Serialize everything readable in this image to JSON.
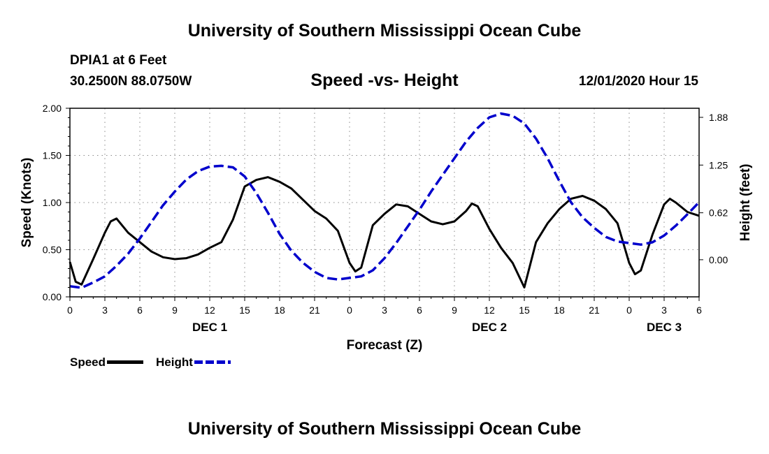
{
  "header": {
    "title_top": "University of Southern Mississippi Ocean Cube",
    "station": "DPIA1 at 6 Feet",
    "coords": "30.2500N 88.0750W",
    "timestamp": "12/01/2020 Hour 15",
    "title_bottom": "University of Southern Mississippi Ocean Cube"
  },
  "chart_data": {
    "type": "line",
    "title": "Speed -vs- Height",
    "xlabel": "Forecast (Z)",
    "ylabel_left": "Speed (Knots)",
    "ylabel_right": "Height (feet)",
    "x_ticks": [
      {
        "x": 0,
        "label": "0"
      },
      {
        "x": 3,
        "label": "3"
      },
      {
        "x": 6,
        "label": "6"
      },
      {
        "x": 9,
        "label": "9"
      },
      {
        "x": 12,
        "label": "12"
      },
      {
        "x": 15,
        "label": "15"
      },
      {
        "x": 18,
        "label": "18"
      },
      {
        "x": 21,
        "label": "21"
      },
      {
        "x": 24,
        "label": "0"
      },
      {
        "x": 27,
        "label": "3"
      },
      {
        "x": 30,
        "label": "6"
      },
      {
        "x": 33,
        "label": "9"
      },
      {
        "x": 36,
        "label": "12"
      },
      {
        "x": 39,
        "label": "15"
      },
      {
        "x": 42,
        "label": "18"
      },
      {
        "x": 45,
        "label": "21"
      },
      {
        "x": 48,
        "label": "0"
      },
      {
        "x": 51,
        "label": "3"
      },
      {
        "x": 54,
        "label": "6"
      }
    ],
    "day_labels": [
      {
        "x": 12,
        "label": "DEC 1"
      },
      {
        "x": 36,
        "label": "DEC 2"
      },
      {
        "x": 51,
        "label": "DEC 3"
      }
    ],
    "xlim": [
      0,
      54
    ],
    "ylim_left": [
      0,
      2
    ],
    "yticks_left": [
      "0.00",
      "0.50",
      "1.00",
      "1.50",
      "2.00"
    ],
    "yticks_left_values": [
      0,
      0.5,
      1.0,
      1.5,
      2.0
    ],
    "ylim_right": [
      -0.49,
      2.0
    ],
    "yticks_right": [
      "0.00",
      "0.62",
      "1.25",
      "1.88"
    ],
    "yticks_right_values": [
      0,
      0.62,
      1.25,
      1.88
    ],
    "series": [
      {
        "name": "Speed",
        "axis": "left",
        "color": "#000000",
        "dashed": false,
        "x": [
          0,
          0.5,
          1,
          2,
          3,
          3.5,
          4,
          5,
          6,
          7,
          8,
          9,
          10,
          11,
          12,
          13,
          14,
          15,
          16,
          17,
          18,
          19,
          20,
          21,
          22,
          23,
          24,
          24.5,
          25,
          26,
          27,
          28,
          29,
          30,
          31,
          32,
          33,
          34,
          34.5,
          35,
          36,
          37,
          38,
          39,
          40,
          41,
          42,
          43,
          44,
          45,
          46,
          47,
          48,
          48.5,
          49,
          50,
          51,
          51.5,
          52,
          53,
          54
        ],
        "values": [
          0.37,
          0.16,
          0.13,
          0.4,
          0.68,
          0.8,
          0.83,
          0.68,
          0.58,
          0.48,
          0.42,
          0.4,
          0.41,
          0.45,
          0.52,
          0.58,
          0.82,
          1.17,
          1.24,
          1.27,
          1.22,
          1.15,
          1.03,
          0.91,
          0.83,
          0.7,
          0.36,
          0.27,
          0.31,
          0.76,
          0.88,
          0.98,
          0.96,
          0.88,
          0.8,
          0.77,
          0.8,
          0.91,
          0.99,
          0.96,
          0.72,
          0.52,
          0.36,
          0.1,
          0.58,
          0.78,
          0.93,
          1.04,
          1.07,
          1.02,
          0.93,
          0.78,
          0.36,
          0.24,
          0.28,
          0.66,
          0.98,
          1.04,
          1.0,
          0.9,
          0.86
        ]
      },
      {
        "name": "Height",
        "axis": "right",
        "color": "#0000cc",
        "dashed": true,
        "x": [
          0,
          1,
          2,
          3,
          4,
          5,
          6,
          7,
          8,
          9,
          10,
          11,
          12,
          13,
          14,
          15,
          16,
          17,
          18,
          19,
          20,
          21,
          22,
          23,
          24,
          25,
          26,
          27,
          28,
          29,
          30,
          31,
          32,
          33,
          34,
          35,
          36,
          37,
          38,
          39,
          40,
          41,
          42,
          43,
          44,
          45,
          46,
          47,
          48,
          49,
          50,
          51,
          52,
          53,
          54
        ],
        "values": [
          -0.35,
          -0.37,
          -0.3,
          -0.22,
          -0.08,
          0.08,
          0.28,
          0.5,
          0.72,
          0.9,
          1.06,
          1.17,
          1.23,
          1.24,
          1.22,
          1.1,
          0.88,
          0.62,
          0.34,
          0.12,
          -0.04,
          -0.16,
          -0.24,
          -0.26,
          -0.24,
          -0.22,
          -0.14,
          0.02,
          0.22,
          0.44,
          0.66,
          0.9,
          1.12,
          1.34,
          1.56,
          1.74,
          1.88,
          1.93,
          1.9,
          1.8,
          1.6,
          1.34,
          1.04,
          0.76,
          0.56,
          0.42,
          0.3,
          0.24,
          0.22,
          0.2,
          0.23,
          0.32,
          0.45,
          0.6,
          0.76
        ]
      }
    ],
    "legend": [
      {
        "label": "Speed",
        "color": "#000000"
      },
      {
        "label": "Height",
        "color": "#0000cc"
      }
    ]
  }
}
